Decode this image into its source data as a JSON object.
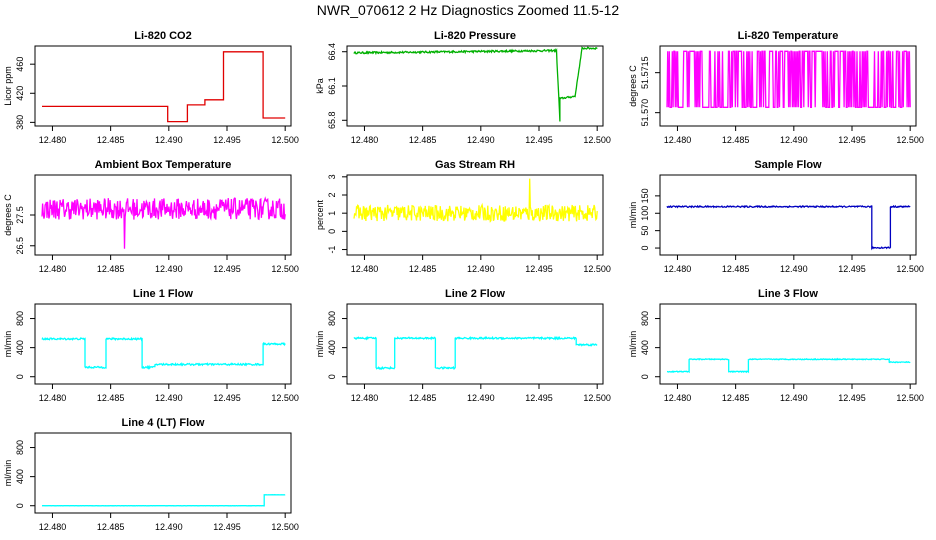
{
  "title": "NWR_070612  2 Hz Diagnostics Zoomed 11.5-12",
  "x_tick_labels": [
    "12.480",
    "12.485",
    "12.490",
    "12.495",
    "12.500"
  ],
  "chart_data": [
    {
      "type": "line",
      "title": "Li-820 CO2",
      "ylabel": "Licor ppm",
      "color": "#e00000",
      "xlim": [
        12.4785,
        12.5005
      ],
      "ylim": [
        375,
        485
      ],
      "yticks": [
        380,
        420,
        460
      ],
      "yticklabels": [
        "380",
        "420",
        "460"
      ],
      "series": [
        {
          "x": [
            12.4791,
            12.4899,
            12.4899,
            12.4916,
            12.4916,
            12.4931,
            12.4931,
            12.4947,
            12.4947,
            12.4981,
            12.4981,
            12.5
          ],
          "y": [
            402,
            402,
            381,
            381,
            404,
            404,
            411,
            411,
            477,
            477,
            386,
            386
          ]
        }
      ]
    },
    {
      "type": "line",
      "title": "Li-820 Pressure",
      "ylabel": "kPa",
      "color": "#00b000",
      "xlim": [
        12.4785,
        12.5005
      ],
      "ylim": [
        65.75,
        66.45
      ],
      "yticks": [
        65.8,
        66.1,
        66.4
      ],
      "yticklabels": [
        "65.8",
        "66.1",
        "66.4"
      ],
      "series": [
        {
          "x": [
            12.4791,
            12.4965,
            12.4965,
            12.4968,
            12.4968,
            12.4981,
            12.4981,
            12.4987,
            12.4987,
            12.5
          ],
          "y": [
            66.39,
            66.41,
            66.41,
            65.79,
            65.99,
            66.01,
            66.01,
            66.43,
            66.43,
            66.43
          ],
          "noise": 0.008
        }
      ]
    },
    {
      "type": "line",
      "title": "Li-820 Temperature",
      "ylabel": "degrees C",
      "color": "#ff00ff",
      "xlim": [
        12.4785,
        12.5005
      ],
      "ylim": [
        51.5695,
        51.5725
      ],
      "yticks": [
        51.57,
        51.5715
      ],
      "yticklabels": [
        "51.570",
        "51.5715"
      ],
      "series": [
        {
          "x": [
            12.4791,
            12.5
          ],
          "y": [
            51.5702,
            51.5723
          ],
          "mode": "toggle"
        }
      ]
    },
    {
      "type": "line",
      "title": "Ambient Box Temperature",
      "ylabel": "degrees C",
      "color": "#ff00ff",
      "xlim": [
        12.4785,
        12.5005
      ],
      "ylim": [
        26.2,
        28.8
      ],
      "yticks": [
        26.5,
        27.5
      ],
      "yticklabels": [
        "26.5",
        "27.5"
      ],
      "series": [
        {
          "x": [
            12.4791,
            12.5
          ],
          "y": [
            27.7,
            27.7
          ],
          "noise": 0.35,
          "spike": [
            12.4862,
            26.4
          ]
        }
      ]
    },
    {
      "type": "line",
      "title": "Gas Stream RH",
      "ylabel": "percent",
      "color": "#ffff00",
      "xlim": [
        12.4785,
        12.5005
      ],
      "ylim": [
        -1.3,
        3.1
      ],
      "yticks": [
        -1,
        0,
        1,
        2,
        3
      ],
      "yticklabels": [
        "-1",
        "0",
        "1",
        "2",
        "3"
      ],
      "series": [
        {
          "x": [
            12.4791,
            12.5
          ],
          "y": [
            1.0,
            1.0
          ],
          "noise": 0.45,
          "spike": [
            12.4942,
            2.9
          ]
        }
      ]
    },
    {
      "type": "line",
      "title": "Sample Flow",
      "ylabel": "ml/min",
      "color": "#0000c0",
      "xlim": [
        12.4785,
        12.5005
      ],
      "ylim": [
        -20,
        210
      ],
      "yticks": [
        0,
        50,
        100,
        150
      ],
      "yticklabels": [
        "0",
        "50",
        "100",
        "150"
      ],
      "series": [
        {
          "x": [
            12.4791,
            12.4967,
            12.4967,
            12.4983,
            12.4983,
            12.5
          ],
          "y": [
            119,
            119,
            1,
            1,
            119,
            119
          ],
          "noise": 2
        }
      ]
    },
    {
      "type": "line",
      "title": "Line 1 Flow",
      "ylabel": "ml/min",
      "color": "#00ffff",
      "xlim": [
        12.4785,
        12.5005
      ],
      "ylim": [
        -100,
        1000
      ],
      "yticks": [
        0,
        400,
        800
      ],
      "yticklabels": [
        "0",
        "400",
        "800"
      ],
      "series": [
        {
          "x": [
            12.4791,
            12.4828,
            12.4828,
            12.4846,
            12.4846,
            12.4877,
            12.4877,
            12.4888,
            12.4888,
            12.4981,
            12.4981,
            12.5
          ],
          "y": [
            520,
            520,
            130,
            130,
            520,
            520,
            130,
            130,
            170,
            170,
            450,
            450
          ],
          "noise": 12
        }
      ]
    },
    {
      "type": "line",
      "title": "Line 2 Flow",
      "ylabel": "ml/min",
      "color": "#00ffff",
      "xlim": [
        12.4785,
        12.5005
      ],
      "ylim": [
        -100,
        1000
      ],
      "yticks": [
        0,
        400,
        800
      ],
      "yticklabels": [
        "0",
        "400",
        "800"
      ],
      "series": [
        {
          "x": [
            12.4791,
            12.481,
            12.481,
            12.4826,
            12.4826,
            12.4861,
            12.4861,
            12.4878,
            12.4878,
            12.4982,
            12.4982,
            12.5
          ],
          "y": [
            530,
            530,
            120,
            120,
            530,
            530,
            120,
            120,
            530,
            530,
            440,
            440
          ],
          "noise": 12
        }
      ]
    },
    {
      "type": "line",
      "title": "Line 3 Flow",
      "ylabel": "ml/min",
      "color": "#00ffff",
      "xlim": [
        12.4785,
        12.5005
      ],
      "ylim": [
        -100,
        1000
      ],
      "yticks": [
        0,
        400,
        800
      ],
      "yticklabels": [
        "0",
        "400",
        "800"
      ],
      "series": [
        {
          "x": [
            12.4791,
            12.481,
            12.481,
            12.4844,
            12.4844,
            12.4861,
            12.4861,
            12.4982,
            12.4982,
            12.5
          ],
          "y": [
            70,
            70,
            240,
            240,
            70,
            70,
            240,
            240,
            200,
            200
          ],
          "noise": 6
        }
      ]
    },
    {
      "type": "line",
      "title": "Line 4 (LT) Flow",
      "ylabel": "ml/min",
      "color": "#00ffff",
      "xlim": [
        12.4785,
        12.5005
      ],
      "ylim": [
        -100,
        1000
      ],
      "yticks": [
        0,
        400,
        800
      ],
      "yticklabels": [
        "0",
        "400",
        "800"
      ],
      "series": [
        {
          "x": [
            12.4791,
            12.4982,
            12.4982,
            12.5
          ],
          "y": [
            0,
            0,
            150,
            150
          ],
          "noise": 1
        }
      ]
    }
  ]
}
